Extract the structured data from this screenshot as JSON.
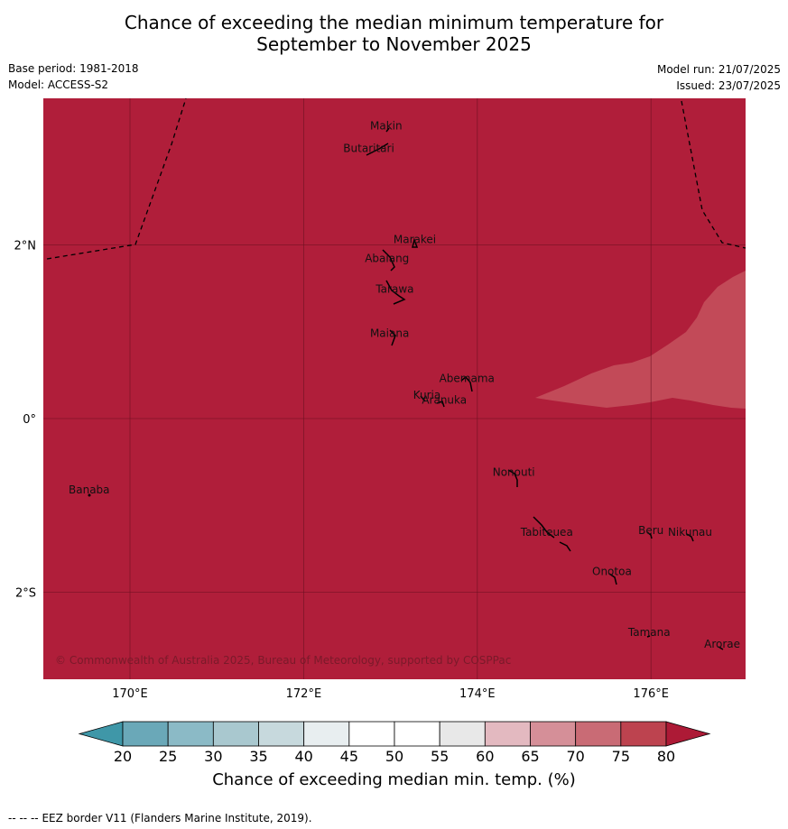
{
  "header": {
    "title_line1": "Chance of exceeding the median minimum temperature for",
    "title_line2": "September to November 2025",
    "base_period": "Base period: 1981-2018",
    "model": "Model: ACCESS-S2",
    "model_run": "Model run: 21/07/2025",
    "issued": "Issued: 23/07/2025"
  },
  "map": {
    "lon_range": [
      169,
      177.1
    ],
    "lat_range": [
      -3.0,
      3.5
    ],
    "base_color": "#b01e3a",
    "patch_color": "#c24a58",
    "grid_color": "#6b1020",
    "lon_ticks": [
      {
        "value": 170,
        "label": "170°E"
      },
      {
        "value": 172,
        "label": "172°E"
      },
      {
        "value": 174,
        "label": "174°E"
      },
      {
        "value": 176,
        "label": "176°E"
      }
    ],
    "lat_ticks": [
      {
        "value": 2,
        "label": "2°N"
      },
      {
        "value": 0,
        "label": "0°"
      },
      {
        "value": -2,
        "label": "2°S"
      }
    ],
    "places": [
      {
        "name": "Makin",
        "lon": 172.95,
        "lat": 3.33
      },
      {
        "name": "Butaritari",
        "lon": 172.75,
        "lat": 3.07
      },
      {
        "name": "Marakei",
        "lon": 173.28,
        "lat": 2.02
      },
      {
        "name": "Abaiang",
        "lon": 172.96,
        "lat": 1.8
      },
      {
        "name": "Tarawa",
        "lon": 173.05,
        "lat": 1.45
      },
      {
        "name": "Maiana",
        "lon": 172.99,
        "lat": 0.94
      },
      {
        "name": "Abemama",
        "lon": 173.88,
        "lat": 0.42
      },
      {
        "name": "Kuria",
        "lon": 173.42,
        "lat": 0.23
      },
      {
        "name": "Aranuka",
        "lon": 173.62,
        "lat": 0.17
      },
      {
        "name": "Nonouti",
        "lon": 174.42,
        "lat": -0.66
      },
      {
        "name": "Banaba",
        "lon": 169.53,
        "lat": -0.86
      },
      {
        "name": "Tabiteuea",
        "lon": 174.8,
        "lat": -1.35
      },
      {
        "name": "Beru",
        "lon": 176.0,
        "lat": -1.33
      },
      {
        "name": "Nikunau",
        "lon": 176.45,
        "lat": -1.35
      },
      {
        "name": "Onotoa",
        "lon": 175.55,
        "lat": -1.8
      },
      {
        "name": "Tamana",
        "lon": 175.98,
        "lat": -2.5
      },
      {
        "name": "Arorae",
        "lon": 176.82,
        "lat": -2.64
      }
    ],
    "copyright": "© Commonwealth of Australia 2025, Bureau of Meteorology, supported by COSPPac"
  },
  "colorbar": {
    "ticks": [
      "20",
      "25",
      "30",
      "35",
      "40",
      "45",
      "50",
      "55",
      "60",
      "65",
      "70",
      "75",
      "80"
    ],
    "colors": [
      "#6aa8b8",
      "#8bbac6",
      "#a9c8cf",
      "#c7d9dd",
      "#e8eef0",
      "#ffffff",
      "#ffffff",
      "#e8e8e8",
      "#e3b9c0",
      "#d58f98",
      "#c96b75",
      "#bd434f"
    ],
    "low_color": "#3f97a8",
    "high_color": "#ad1a36",
    "label": "Chance of exceeding median min. temp. (%)"
  },
  "footer": {
    "eez_legend_symbol": "--  --  --",
    "eez_legend": "EEZ border V11 (Flanders Marine Institute, 2019)."
  }
}
